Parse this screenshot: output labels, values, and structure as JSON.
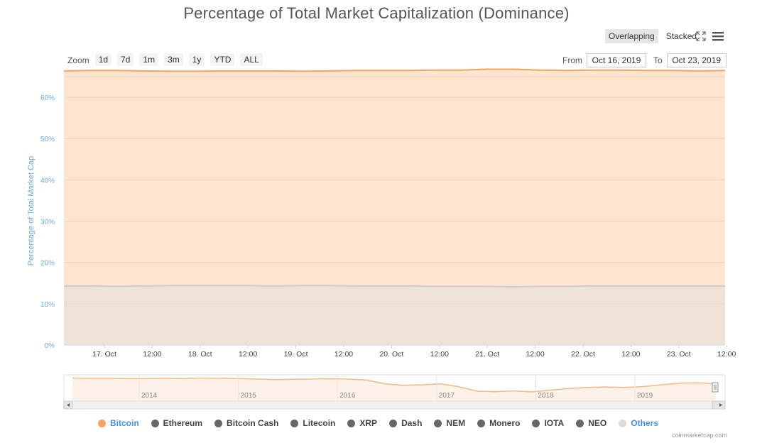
{
  "title": "Percentage of Total Market Capitalization (Dominance)",
  "toolbar": {
    "overlapping_label": "Overlapping",
    "stacked_label": "Stacked",
    "fullscreen_icon": "fullscreen-icon",
    "menu_icon": "hamburger-menu-icon"
  },
  "zoom": {
    "label": "Zoom",
    "buttons": [
      "1d",
      "7d",
      "1m",
      "3m",
      "1y",
      "YTD",
      "ALL"
    ]
  },
  "range": {
    "from_label": "From",
    "from_value": "Oct 16, 2019",
    "to_label": "To",
    "to_value": "Oct 23, 2019"
  },
  "chart_data": {
    "type": "area",
    "ylabel": "Percentage of Total Market Cap",
    "ylim": [
      0,
      65
    ],
    "yticks": [
      "0%",
      "10%",
      "20%",
      "30%",
      "40%",
      "50%",
      "60%"
    ],
    "xlim": [
      "2019-10-16 16:00",
      "2019-10-23 13:00"
    ],
    "xtick_labels": [
      "17. Oct",
      "12:00",
      "18. Oct",
      "12:00",
      "19. Oct",
      "12:00",
      "20. Oct",
      "12:00",
      "21. Oct",
      "12:00",
      "22. Oct",
      "12:00",
      "23. Oct",
      "12:00"
    ],
    "grid": true,
    "series": [
      {
        "name": "Bitcoin",
        "color": "#f7a35c",
        "values": [
          66.4,
          66.5,
          66.5,
          66.4,
          66.3,
          66.3,
          66.4,
          66.4,
          66.4,
          66.3,
          66.4,
          66.5,
          66.5,
          66.5,
          66.6,
          66.6,
          66.8,
          66.8,
          66.6,
          66.5,
          66.6,
          66.6,
          66.5,
          66.5,
          66.4,
          66.5
        ]
      },
      {
        "name": "Others",
        "color": "#cccccc",
        "values": [
          14.3,
          14.3,
          14.2,
          14.3,
          14.4,
          14.4,
          14.4,
          14.4,
          14.3,
          14.4,
          14.4,
          14.3,
          14.3,
          14.3,
          14.2,
          14.2,
          14.2,
          14.1,
          14.2,
          14.2,
          14.3,
          14.3,
          14.3,
          14.3,
          14.3,
          14.3
        ]
      }
    ],
    "navigator": {
      "year_labels": [
        "2014",
        "2015",
        "2016",
        "2017",
        "2018",
        "2019"
      ],
      "bitcoin_values": [
        88,
        87,
        87,
        86,
        86,
        87,
        86,
        88,
        87,
        86,
        84,
        82,
        83,
        84,
        85,
        84,
        80,
        66,
        60,
        62,
        66,
        55,
        38,
        36,
        39,
        35,
        42,
        48,
        52,
        54,
        52,
        55,
        62,
        68,
        70,
        66
      ]
    }
  },
  "legend": {
    "items": [
      {
        "label": "Bitcoin",
        "color": "#f7a35c",
        "text_color": "#4a90e2"
      },
      {
        "label": "Ethereum",
        "color": "#666666",
        "text_color": "#444444"
      },
      {
        "label": "Bitcoin Cash",
        "color": "#666666",
        "text_color": "#444444"
      },
      {
        "label": "Litecoin",
        "color": "#666666",
        "text_color": "#444444"
      },
      {
        "label": "XRP",
        "color": "#666666",
        "text_color": "#444444"
      },
      {
        "label": "Dash",
        "color": "#666666",
        "text_color": "#444444"
      },
      {
        "label": "NEM",
        "color": "#666666",
        "text_color": "#444444"
      },
      {
        "label": "Monero",
        "color": "#666666",
        "text_color": "#444444"
      },
      {
        "label": "IOTA",
        "color": "#666666",
        "text_color": "#444444"
      },
      {
        "label": "NEO",
        "color": "#666666",
        "text_color": "#444444"
      },
      {
        "label": "Others",
        "color": "#dddddd",
        "text_color": "#4a90e2"
      }
    ]
  },
  "credit": "coinmarketcap.com"
}
